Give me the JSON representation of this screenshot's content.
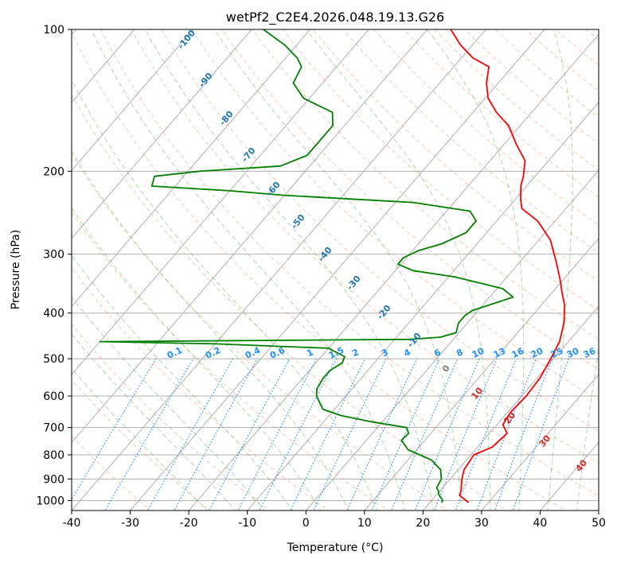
{
  "chart_data": {
    "type": "line",
    "title": "wetPf2_C2E4.2026.048.19.13.G26",
    "xlabel": "Temperature (°C)",
    "ylabel": "Pressure (hPa)",
    "xlim": [
      -40,
      50
    ],
    "ylim": [
      1050,
      100
    ],
    "y_scale": "log",
    "skew": true,
    "grid": true,
    "x_ticks": [
      -40,
      -30,
      -20,
      -10,
      0,
      10,
      20,
      30,
      40,
      50
    ],
    "y_ticks": [
      1000,
      900,
      800,
      700,
      600,
      500,
      400,
      300,
      200,
      100
    ],
    "series": [
      {
        "color": "#ff0000",
        "points": [
          [
            26.6,
            1010
          ],
          [
            24.0,
            975
          ],
          [
            23.5,
            950
          ],
          [
            22.0,
            900
          ],
          [
            21.0,
            860
          ],
          [
            20.5,
            800
          ],
          [
            22.5,
            770
          ],
          [
            23.0,
            720
          ],
          [
            21.0,
            690
          ],
          [
            20.5,
            650
          ],
          [
            20.8,
            600
          ],
          [
            20.5,
            550
          ],
          [
            19.5,
            500
          ],
          [
            18.5,
            460
          ],
          [
            16.5,
            420
          ],
          [
            14.0,
            385
          ],
          [
            11.5,
            360
          ],
          [
            9.5,
            340
          ],
          [
            6.0,
            310
          ],
          [
            2.0,
            280
          ],
          [
            -3.0,
            255
          ],
          [
            -7.5,
            240
          ],
          [
            -9.0,
            230
          ],
          [
            -11.0,
            215
          ],
          [
            -12.0,
            205
          ],
          [
            -14.0,
            190
          ],
          [
            -18.0,
            175
          ],
          [
            -22.0,
            160
          ],
          [
            -26.0,
            150
          ],
          [
            -29.5,
            140
          ],
          [
            -32.0,
            130
          ],
          [
            -34.0,
            120
          ],
          [
            -38.0,
            115
          ],
          [
            -42.0,
            108
          ],
          [
            -46.0,
            100
          ]
        ]
      },
      {
        "color": "#008000",
        "points": [
          [
            22.0,
            1010
          ],
          [
            21.9,
            1000
          ],
          [
            20.3,
            970
          ],
          [
            19.8,
            955
          ],
          [
            19.0,
            940
          ],
          [
            18.5,
            900
          ],
          [
            17.0,
            860
          ],
          [
            14.0,
            820
          ],
          [
            8.5,
            780
          ],
          [
            6.0,
            745
          ],
          [
            6.2,
            720
          ],
          [
            5.0,
            700
          ],
          [
            -2.0,
            680
          ],
          [
            -8.0,
            660
          ],
          [
            -12.0,
            640
          ],
          [
            -13.5,
            620
          ],
          [
            -15.0,
            600
          ],
          [
            -16.0,
            580
          ],
          [
            -16.5,
            550
          ],
          [
            -16.5,
            530
          ],
          [
            -15.5,
            510
          ],
          [
            -16.0,
            495
          ],
          [
            -20.0,
            475
          ],
          [
            -40.0,
            465
          ],
          [
            -60.0,
            460
          ],
          [
            -7.5,
            455
          ],
          [
            -2.5,
            450
          ],
          [
            -0.5,
            440
          ],
          [
            -1.5,
            420
          ],
          [
            -1.5,
            405
          ],
          [
            -1.0,
            395
          ],
          [
            2.0,
            380
          ],
          [
            4.0,
            370
          ],
          [
            1.0,
            355
          ],
          [
            -9.0,
            335
          ],
          [
            -17.0,
            325
          ],
          [
            -20.5,
            315
          ],
          [
            -20.5,
            305
          ],
          [
            -19.0,
            295
          ],
          [
            -16.0,
            285
          ],
          [
            -13.5,
            270
          ],
          [
            -13.5,
            255
          ],
          [
            -16.0,
            243
          ],
          [
            -27.0,
            233
          ],
          [
            -50.0,
            225
          ],
          [
            -60.0,
            220
          ],
          [
            -74.0,
            215
          ],
          [
            -75.0,
            205
          ],
          [
            -68.0,
            200
          ],
          [
            -55.0,
            195
          ],
          [
            -52.0,
            185
          ],
          [
            -52.0,
            170
          ],
          [
            -52.0,
            160
          ],
          [
            -54.0,
            150
          ],
          [
            -61.0,
            140
          ],
          [
            -65.0,
            130
          ],
          [
            -66.0,
            120
          ],
          [
            -68.0,
            115
          ],
          [
            -72.0,
            108
          ],
          [
            -78.0,
            100
          ]
        ]
      }
    ],
    "dry_adiabats_C": [
      -100,
      -90,
      -80,
      -70,
      -60,
      -50,
      -40,
      -30,
      -20,
      -10,
      0,
      10,
      20,
      30,
      40
    ],
    "moist_adiabat_labels": [
      "0",
      "10",
      "20",
      "30",
      "40"
    ],
    "mixing_ratio_labels": [
      "0.1",
      "0.2",
      "0.4",
      "0.6",
      "1",
      "1.5",
      "2",
      "3",
      "4",
      "6",
      "8",
      "10",
      "13",
      "16",
      "20",
      "25",
      "30",
      "36"
    ],
    "colors": {
      "temperature": "#ff0000",
      "dewpoint": "#008000",
      "dry_adiabat": "#ff7f50",
      "moist_adiabat": "#2ca02c",
      "mixing_ratio": "#1e90ff",
      "isotherm": "#808080"
    }
  }
}
